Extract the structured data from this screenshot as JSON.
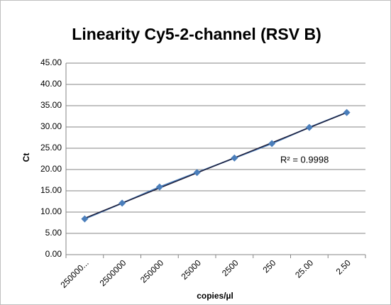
{
  "chart_data": {
    "type": "line",
    "title": "Linearity Cy5-2-channel (RSV B)",
    "x_label": "copies/µl",
    "y_label": "Ct",
    "annotation": "R² = 0.9998",
    "categories": [
      "250000...",
      "2500000",
      "250000",
      "25000",
      "2500",
      "250",
      "25.00",
      "2.50"
    ],
    "series": [
      {
        "name": "Ct",
        "color": "#4a7ebb",
        "values": [
          8.4,
          12.1,
          15.9,
          19.3,
          22.7,
          26.1,
          29.9,
          33.4
        ]
      }
    ],
    "trendline": "linear",
    "trendline_color": "#1f1f3a",
    "ylim": [
      0,
      45
    ],
    "yticks": [
      {
        "value": 0,
        "label": "0.00"
      },
      {
        "value": 5,
        "label": "5.00"
      },
      {
        "value": 10,
        "label": "10.00"
      },
      {
        "value": 15,
        "label": "15.00"
      },
      {
        "value": 20,
        "label": "20.00"
      },
      {
        "value": 25,
        "label": "25.00"
      },
      {
        "value": 30,
        "label": "30.00"
      },
      {
        "value": 35,
        "label": "35.00"
      },
      {
        "value": 40,
        "label": "40.00"
      },
      {
        "value": 45,
        "label": "45.00"
      }
    ],
    "grid": true
  }
}
